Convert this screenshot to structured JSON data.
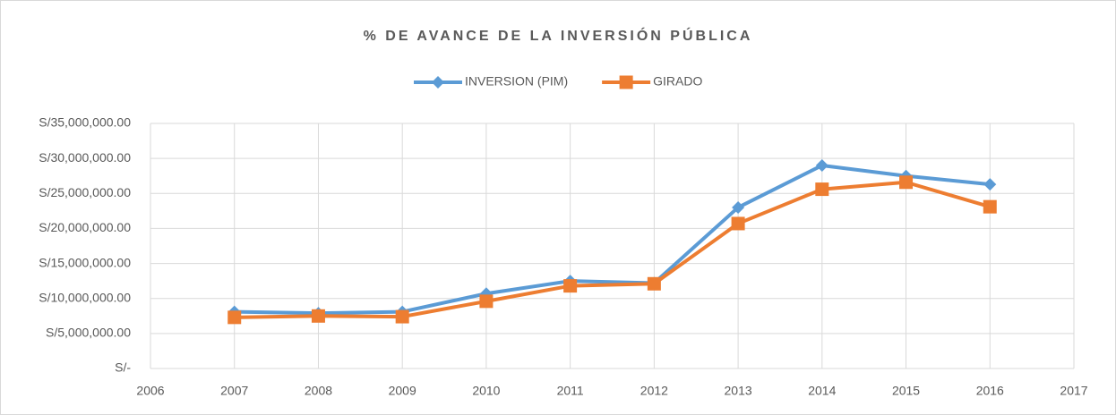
{
  "chart_data": {
    "type": "line",
    "title": "% DE AVANCE DE LA INVERSIÓN PÚBLICA",
    "x": [
      2007,
      2008,
      2009,
      2010,
      2011,
      2012,
      2013,
      2014,
      2015,
      2016
    ],
    "series": [
      {
        "name": "INVERSION (PIM)",
        "color": "#5b9bd5",
        "marker": "diamond",
        "values": [
          8100000,
          7900000,
          8100000,
          10700000,
          12500000,
          12200000,
          23000000,
          29000000,
          27500000,
          26300000
        ]
      },
      {
        "name": "GIRADO",
        "color": "#ed7d31",
        "marker": "square",
        "values": [
          7300000,
          7500000,
          7400000,
          9600000,
          11800000,
          12100000,
          20700000,
          25600000,
          26600000,
          23100000
        ]
      }
    ],
    "xlim": [
      2006,
      2017
    ],
    "xticks": [
      2006,
      2007,
      2008,
      2009,
      2010,
      2011,
      2012,
      2013,
      2014,
      2015,
      2016,
      2017
    ],
    "ylim": [
      0,
      35000000
    ],
    "yticks": [
      {
        "value": 0,
        "label": "S/-"
      },
      {
        "value": 5000000,
        "label": "S/5,000,000.00"
      },
      {
        "value": 10000000,
        "label": "S/10,000,000.00"
      },
      {
        "value": 15000000,
        "label": "S/15,000,000.00"
      },
      {
        "value": 20000000,
        "label": "S/20,000,000.00"
      },
      {
        "value": 25000000,
        "label": "S/25,000,000.00"
      },
      {
        "value": 30000000,
        "label": "S/30,000,000.00"
      },
      {
        "value": 35000000,
        "label": "S/35,000,000.00"
      }
    ],
    "grid": true,
    "legend": "top"
  }
}
